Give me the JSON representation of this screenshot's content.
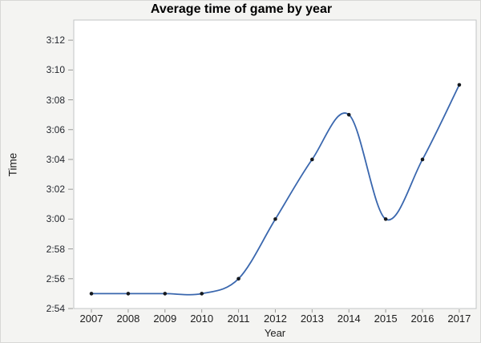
{
  "window": {
    "background_color": "#f4f4f2"
  },
  "chart_data": {
    "type": "line",
    "title": "Average time of game by year",
    "xlabel": "Year",
    "ylabel": "Time",
    "smooth": true,
    "markers": true,
    "grid": false,
    "legend": "none",
    "plot_background": "#ffffff",
    "plot_border_color": "#c2c4c6",
    "tick_color": "#9a9a98",
    "line_color": "#3a67ae",
    "marker_color": "#15191e",
    "x": [
      2007,
      2008,
      2009,
      2010,
      2011,
      2012,
      2013,
      2014,
      2015,
      2016,
      2017
    ],
    "y_time_labels": [
      "2:55",
      "2:55",
      "2:55",
      "2:55",
      "2:56",
      "3:00",
      "3:04",
      "3:07",
      "3:00",
      "3:04",
      "3:09"
    ],
    "y_minutes": [
      175,
      175,
      175,
      175,
      176,
      180,
      184,
      187,
      180,
      184,
      189
    ],
    "yticks": [
      {
        "v": 174,
        "label": "2:54"
      },
      {
        "v": 176,
        "label": "2:56"
      },
      {
        "v": 178,
        "label": "2:58"
      },
      {
        "v": 180,
        "label": "3:00"
      },
      {
        "v": 182,
        "label": "3:02"
      },
      {
        "v": 184,
        "label": "3:04"
      },
      {
        "v": 186,
        "label": "3:06"
      },
      {
        "v": 188,
        "label": "3:08"
      },
      {
        "v": 190,
        "label": "3:10"
      },
      {
        "v": 192,
        "label": "3:12"
      }
    ],
    "xlim": [
      2006.52,
      2017.46
    ],
    "ylim_minutes": [
      174,
      193.35
    ]
  }
}
